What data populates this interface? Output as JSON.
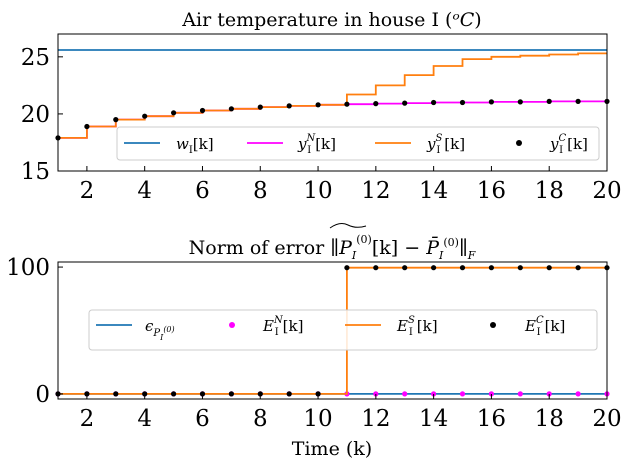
{
  "chart_data": [
    {
      "type": "line",
      "title": "Air temperature in house I (°C)",
      "xlabel": "",
      "ylabel": "",
      "xlim": [
        1,
        20
      ],
      "ylim": [
        15,
        27
      ],
      "xticks": [
        2,
        4,
        6,
        8,
        10,
        12,
        14,
        16,
        18,
        20
      ],
      "yticks": [
        15,
        20,
        25
      ],
      "grid": false,
      "legend_position": "lower center",
      "x": [
        1,
        2,
        3,
        4,
        5,
        6,
        7,
        8,
        9,
        10,
        11,
        12,
        13,
        14,
        15,
        16,
        17,
        18,
        19,
        20
      ],
      "series": [
        {
          "name": "wI[k]",
          "style": "line",
          "color": "#1f77b4",
          "values": [
            25.6,
            25.6,
            25.6,
            25.6,
            25.6,
            25.6,
            25.6,
            25.6,
            25.6,
            25.6,
            25.6,
            25.6,
            25.6,
            25.6,
            25.6,
            25.6,
            25.6,
            25.6,
            25.6,
            25.6
          ]
        },
        {
          "name": "yI^N[k]",
          "style": "step",
          "color": "#ff00ff",
          "values": [
            17.9,
            18.9,
            19.5,
            19.8,
            20.1,
            20.3,
            20.45,
            20.6,
            20.7,
            20.8,
            20.85,
            20.9,
            20.95,
            21.0,
            21.0,
            21.05,
            21.05,
            21.1,
            21.1,
            21.1
          ]
        },
        {
          "name": "yI^S[k]",
          "style": "step",
          "color": "#ff7f0e",
          "values": [
            17.9,
            18.9,
            19.5,
            19.8,
            20.1,
            20.3,
            20.45,
            20.6,
            20.7,
            20.8,
            21.7,
            22.5,
            23.4,
            24.2,
            24.8,
            25.0,
            25.1,
            25.2,
            25.3,
            25.3
          ]
        },
        {
          "name": "yI^C[k]",
          "style": "markers",
          "color": "#000000",
          "values": [
            17.9,
            18.9,
            19.5,
            19.8,
            20.1,
            20.3,
            20.45,
            20.6,
            20.7,
            20.8,
            20.85,
            20.9,
            20.95,
            21.0,
            21.0,
            21.05,
            21.05,
            21.1,
            21.1,
            21.1
          ]
        }
      ]
    },
    {
      "type": "line",
      "title": "Norm of error ||P̂_I^(0)[k] − P̄_I^(0)||_F",
      "xlabel": "Time (k)",
      "ylabel": "",
      "xlim": [
        1,
        20
      ],
      "ylim": [
        -4,
        104
      ],
      "xticks": [
        2,
        4,
        6,
        8,
        10,
        12,
        14,
        16,
        18,
        20
      ],
      "yticks": [
        0,
        100
      ],
      "grid": false,
      "legend_position": "center",
      "x": [
        1,
        2,
        3,
        4,
        5,
        6,
        7,
        8,
        9,
        10,
        11,
        12,
        13,
        14,
        15,
        16,
        17,
        18,
        19,
        20
      ],
      "series": [
        {
          "name": "ε_P_I^(0)",
          "style": "line",
          "color": "#1f77b4",
          "values": [
            0,
            0,
            0,
            0,
            0,
            0,
            0,
            0,
            0,
            0,
            0,
            0,
            0,
            0,
            0,
            0,
            0,
            0,
            0,
            0
          ]
        },
        {
          "name": "EI^N[k]",
          "style": "markers",
          "color": "#ff00ff",
          "values": [
            0,
            0,
            0,
            0,
            0,
            0,
            0,
            0,
            0,
            0,
            0,
            0,
            0,
            0,
            0,
            0,
            0,
            0,
            0,
            0
          ]
        },
        {
          "name": "EI^S[k]",
          "style": "step",
          "color": "#ff7f0e",
          "values": [
            0,
            0,
            0,
            0,
            0,
            0,
            0,
            0,
            0,
            0,
            99.5,
            99.5,
            99.5,
            99.5,
            99.5,
            99.5,
            99.5,
            99.5,
            99.5,
            99.5
          ]
        },
        {
          "name": "EI^C[k]",
          "style": "markers",
          "color": "#000000",
          "values": [
            0,
            0,
            0,
            0,
            0,
            0,
            0,
            0,
            0,
            0,
            99.5,
            99.5,
            99.5,
            99.5,
            99.5,
            99.5,
            99.5,
            99.5,
            99.5,
            99.5
          ]
        }
      ]
    }
  ]
}
